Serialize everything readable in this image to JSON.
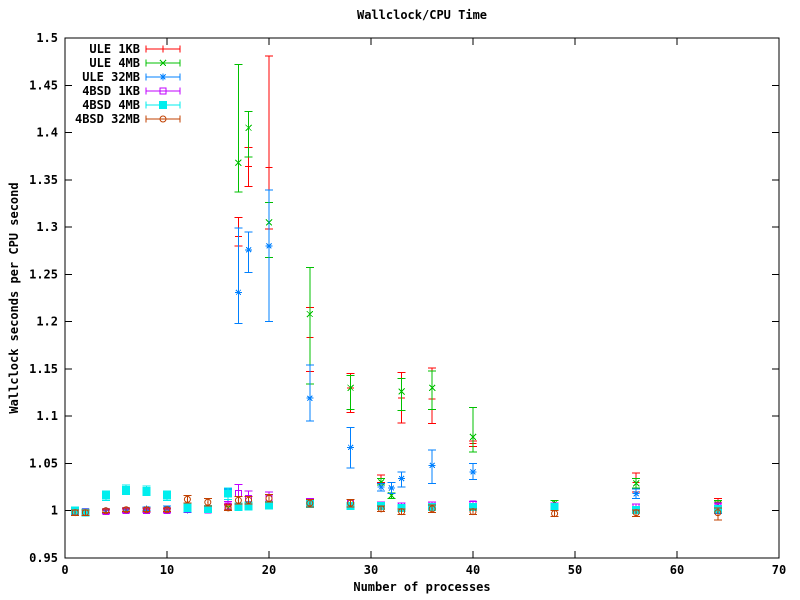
{
  "chart_data": {
    "type": "scatter",
    "title": "Wallclock/CPU Time",
    "xlabel": "Number of processes",
    "ylabel": "Wallclock seconds per CPU second",
    "xlim": [
      0,
      70
    ],
    "ylim": [
      0.95,
      1.5
    ],
    "xticks": [
      0,
      10,
      20,
      30,
      40,
      50,
      60,
      70
    ],
    "xtick_labels": [
      "0",
      "10",
      "20",
      "30",
      "40",
      "50",
      "60",
      "70"
    ],
    "yticks": [
      0.95,
      1.0,
      1.05,
      1.1,
      1.15,
      1.2,
      1.25,
      1.3,
      1.35,
      1.4,
      1.45,
      1.5
    ],
    "ytick_labels": [
      "0.95",
      "1",
      "1.05",
      "1.1",
      "1.15",
      "1.2",
      "1.25",
      "1.3",
      "1.35",
      "1.4",
      "1.45",
      "1.5"
    ],
    "grid": false,
    "legend_position": "top-left",
    "error_bars": true,
    "point_format": "[x, y, ylow, yhigh]",
    "series": [
      {
        "name": "ULE 1KB",
        "color": "#ff0000",
        "marker": "plus",
        "points": [
          [
            1,
            0.999,
            0.997,
            1.001
          ],
          [
            2,
            0.999,
            0.997,
            1.001
          ],
          [
            4,
            1.0,
            0.998,
            1.002
          ],
          [
            6,
            1.001,
            0.999,
            1.003
          ],
          [
            8,
            1.001,
            0.999,
            1.003
          ],
          [
            10,
            1.001,
            0.999,
            1.003
          ],
          [
            12,
            1.001,
            0.998,
            1.004
          ],
          [
            14,
            1.002,
            0.999,
            1.005
          ],
          [
            16,
            1.004,
            1.001,
            1.007
          ],
          [
            17,
            1.29,
            1.28,
            1.31
          ],
          [
            18,
            1.364,
            1.343,
            1.384
          ],
          [
            20,
            1.363,
            1.298,
            1.481
          ],
          [
            24,
            1.183,
            1.147,
            1.215
          ],
          [
            28,
            1.13,
            1.104,
            1.145
          ],
          [
            31,
            1.034,
            1.03,
            1.038
          ],
          [
            33,
            1.119,
            1.093,
            1.146
          ],
          [
            36,
            1.118,
            1.092,
            1.151
          ],
          [
            40,
            1.071,
            1.068,
            1.074
          ],
          [
            48,
            1.004,
            1.001,
            1.007
          ],
          [
            56,
            1.03,
            1.02,
            1.04
          ],
          [
            64,
            1.009,
            1.004,
            1.013
          ]
        ]
      },
      {
        "name": "ULE 4MB",
        "color": "#00c000",
        "marker": "cross",
        "points": [
          [
            1,
            0.999,
            0.997,
            1.001
          ],
          [
            2,
            0.998,
            0.996,
            1.0
          ],
          [
            4,
            0.999,
            0.997,
            1.001
          ],
          [
            6,
            1.0,
            0.998,
            1.002
          ],
          [
            8,
            1.001,
            0.999,
            1.003
          ],
          [
            10,
            1.0,
            0.998,
            1.002
          ],
          [
            12,
            1.001,
            0.999,
            1.003
          ],
          [
            14,
            1.001,
            0.999,
            1.003
          ],
          [
            16,
            1.003,
            1.0,
            1.006
          ],
          [
            17,
            1.368,
            1.337,
            1.472
          ],
          [
            18,
            1.405,
            1.374,
            1.422
          ],
          [
            20,
            1.305,
            1.268,
            1.326
          ],
          [
            24,
            1.208,
            1.134,
            1.257
          ],
          [
            28,
            1.13,
            1.107,
            1.143
          ],
          [
            31,
            1.03,
            1.027,
            1.034
          ],
          [
            32,
            1.016,
            1.013,
            1.019
          ],
          [
            33,
            1.126,
            1.106,
            1.14
          ],
          [
            36,
            1.13,
            1.107,
            1.148
          ],
          [
            40,
            1.078,
            1.062,
            1.109
          ],
          [
            48,
            1.008,
            1.005,
            1.011
          ],
          [
            56,
            1.029,
            1.024,
            1.034
          ],
          [
            64,
            1.007,
            1.003,
            1.011
          ]
        ]
      },
      {
        "name": "ULE 32MB",
        "color": "#0080ff",
        "marker": "asterisk",
        "points": [
          [
            1,
            0.998,
            0.996,
            1.0
          ],
          [
            2,
            0.998,
            0.996,
            1.0
          ],
          [
            4,
            1.0,
            0.998,
            1.002
          ],
          [
            6,
            1.001,
            0.999,
            1.003
          ],
          [
            8,
            1.002,
            1.0,
            1.004
          ],
          [
            10,
            1.002,
            0.999,
            1.005
          ],
          [
            12,
            1.001,
            0.998,
            1.004
          ],
          [
            14,
            1.001,
            0.998,
            1.004
          ],
          [
            16,
            1.017,
            1.01,
            1.023
          ],
          [
            17,
            1.231,
            1.198,
            1.299
          ],
          [
            18,
            1.276,
            1.252,
            1.295
          ],
          [
            20,
            1.28,
            1.2,
            1.339
          ],
          [
            24,
            1.119,
            1.095,
            1.154
          ],
          [
            28,
            1.067,
            1.045,
            1.088
          ],
          [
            31,
            1.025,
            1.021,
            1.029
          ],
          [
            32,
            1.024,
            1.018,
            1.03
          ],
          [
            33,
            1.034,
            1.025,
            1.041
          ],
          [
            36,
            1.048,
            1.029,
            1.064
          ],
          [
            40,
            1.041,
            1.033,
            1.05
          ],
          [
            48,
            1.004,
            1.001,
            1.007
          ],
          [
            56,
            1.018,
            1.013,
            1.023
          ],
          [
            64,
            1.0,
            0.997,
            1.003
          ]
        ]
      },
      {
        "name": "4BSD 1KB",
        "color": "#c000ff",
        "marker": "square-open",
        "points": [
          [
            1,
            1.0,
            0.998,
            1.002
          ],
          [
            2,
            0.999,
            0.997,
            1.001
          ],
          [
            4,
            0.999,
            0.997,
            1.001
          ],
          [
            6,
            1.0,
            0.998,
            1.002
          ],
          [
            8,
            1.0,
            0.998,
            1.002
          ],
          [
            10,
            1.0,
            0.998,
            1.002
          ],
          [
            12,
            1.002,
            0.999,
            1.005
          ],
          [
            14,
            1.001,
            0.998,
            1.004
          ],
          [
            16,
            1.005,
            1.0,
            1.01
          ],
          [
            17,
            1.018,
            1.008,
            1.028
          ],
          [
            18,
            1.013,
            1.005,
            1.021
          ],
          [
            20,
            1.013,
            1.006,
            1.02
          ],
          [
            24,
            1.009,
            1.005,
            1.013
          ],
          [
            28,
            1.008,
            1.004,
            1.012
          ],
          [
            31,
            1.006,
            1.003,
            1.009
          ],
          [
            33,
            1.005,
            1.002,
            1.008
          ],
          [
            36,
            1.006,
            1.003,
            1.009
          ],
          [
            40,
            1.007,
            1.004,
            1.01
          ],
          [
            48,
            1.005,
            1.002,
            1.008
          ],
          [
            56,
            1.004,
            1.001,
            1.007
          ],
          [
            64,
            1.004,
            1.0,
            1.008
          ]
        ]
      },
      {
        "name": "4BSD 4MB",
        "color": "#00eeee",
        "marker": "square-filled",
        "points": [
          [
            1,
            1.0,
            0.998,
            1.002
          ],
          [
            2,
            0.998,
            0.995,
            1.001
          ],
          [
            4,
            1.016,
            1.011,
            1.021
          ],
          [
            6,
            1.022,
            1.017,
            1.027
          ],
          [
            8,
            1.021,
            1.016,
            1.026
          ],
          [
            10,
            1.016,
            1.011,
            1.021
          ],
          [
            12,
            1.003,
            0.999,
            1.007
          ],
          [
            14,
            1.002,
            0.999,
            1.005
          ],
          [
            16,
            1.018,
            1.012,
            1.024
          ],
          [
            17,
            1.004,
            1.0,
            1.008
          ],
          [
            18,
            1.005,
            1.001,
            1.009
          ],
          [
            20,
            1.006,
            1.002,
            1.01
          ],
          [
            24,
            1.007,
            1.004,
            1.01
          ],
          [
            28,
            1.005,
            1.002,
            1.008
          ],
          [
            31,
            1.005,
            1.002,
            1.008
          ],
          [
            33,
            1.003,
            1.0,
            1.006
          ],
          [
            36,
            1.004,
            1.001,
            1.007
          ],
          [
            40,
            1.004,
            1.001,
            1.007
          ],
          [
            48,
            1.004,
            1.001,
            1.007
          ],
          [
            56,
            1.001,
            0.998,
            1.004
          ],
          [
            64,
            1.002,
            0.999,
            1.005
          ]
        ]
      },
      {
        "name": "4BSD 32MB",
        "color": "#c04000",
        "marker": "circle-open",
        "points": [
          [
            1,
            0.998,
            0.995,
            1.001
          ],
          [
            2,
            0.998,
            0.995,
            1.001
          ],
          [
            4,
            1.0,
            0.998,
            1.002
          ],
          [
            6,
            1.001,
            0.999,
            1.003
          ],
          [
            8,
            1.001,
            0.999,
            1.003
          ],
          [
            10,
            1.001,
            0.999,
            1.003
          ],
          [
            12,
            1.012,
            1.008,
            1.016
          ],
          [
            14,
            1.009,
            1.005,
            1.013
          ],
          [
            16,
            1.003,
            1.0,
            1.006
          ],
          [
            17,
            1.011,
            1.007,
            1.015
          ],
          [
            18,
            1.011,
            1.007,
            1.015
          ],
          [
            20,
            1.013,
            1.009,
            1.017
          ],
          [
            24,
            1.008,
            1.004,
            1.012
          ],
          [
            28,
            1.008,
            1.004,
            1.012
          ],
          [
            31,
            1.002,
            0.999,
            1.005
          ],
          [
            33,
            0.999,
            0.996,
            1.002
          ],
          [
            36,
            1.002,
            0.998,
            1.006
          ],
          [
            40,
            0.999,
            0.996,
            1.002
          ],
          [
            48,
            0.997,
            0.994,
            1.0
          ],
          [
            56,
            0.998,
            0.994,
            1.001
          ],
          [
            64,
            0.998,
            0.99,
            1.003
          ]
        ]
      }
    ]
  }
}
